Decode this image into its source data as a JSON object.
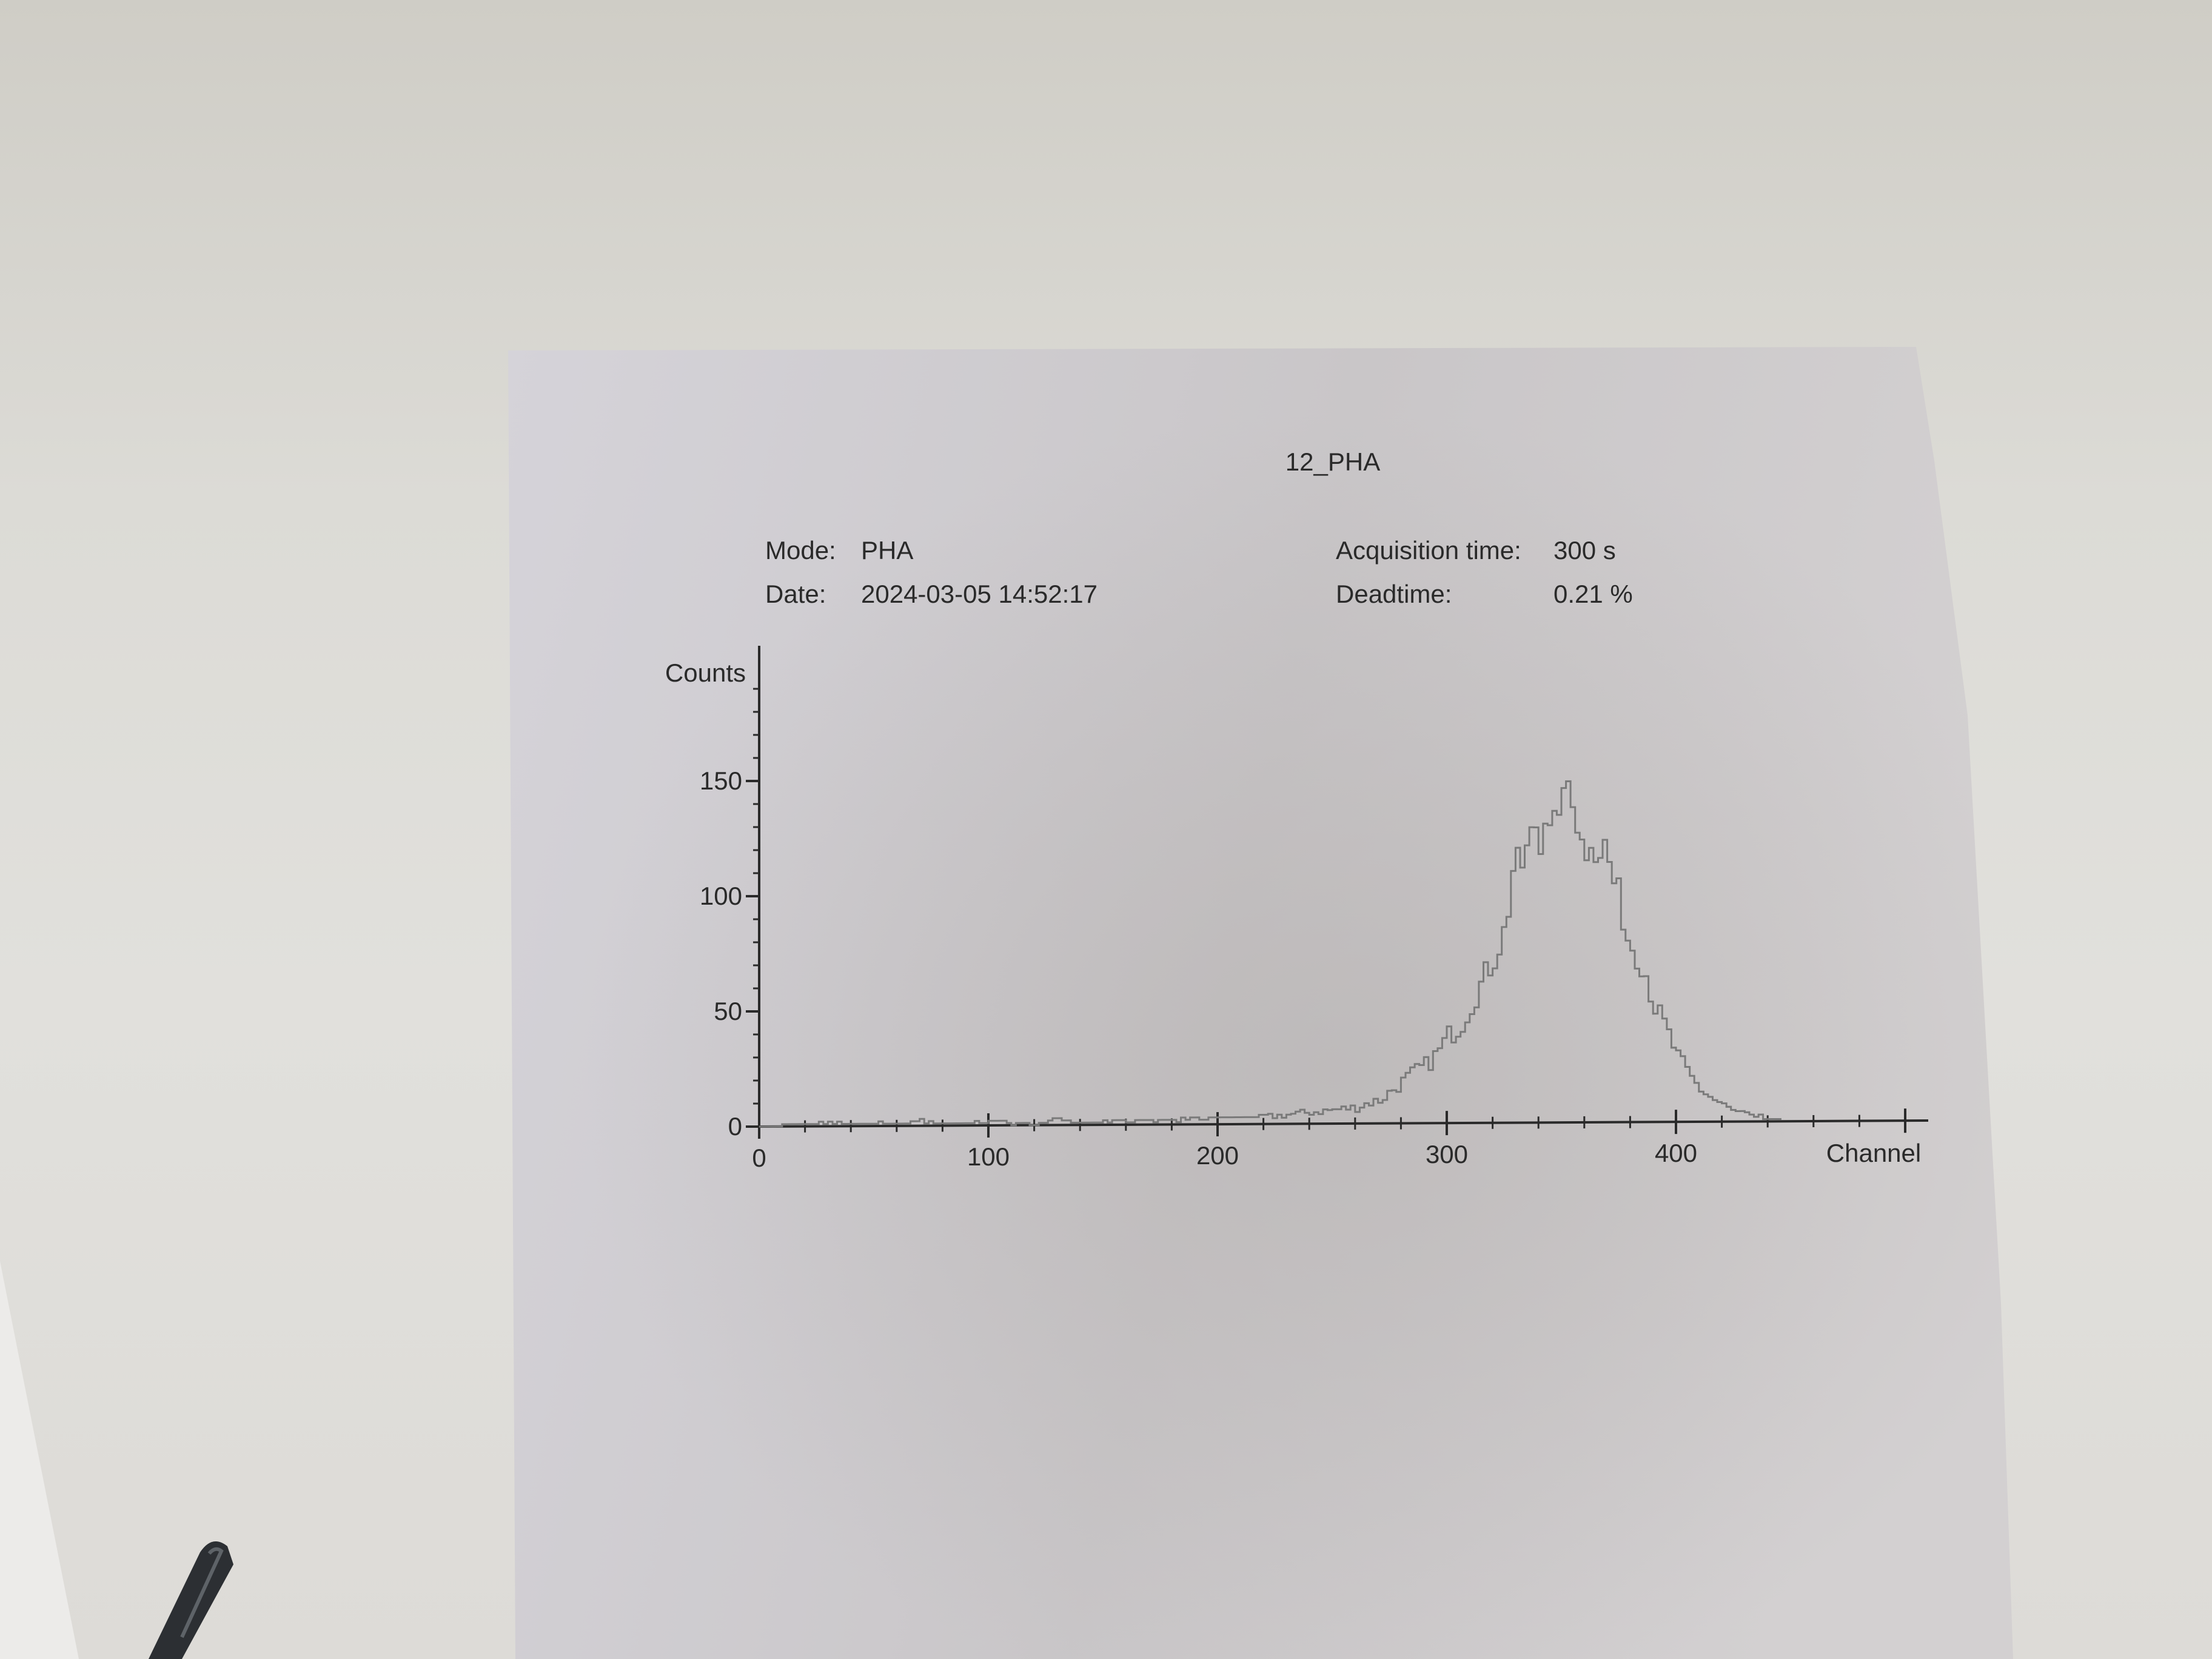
{
  "document": {
    "title": "12_PHA",
    "mode_label": "Mode:",
    "mode_value": "PHA",
    "date_label": "Date:",
    "date_value": "2024-03-05 14:52:17",
    "acq_label": "Acquisition time:",
    "acq_value": "300 s",
    "dead_label": "Deadtime:",
    "dead_value": "0.21 %"
  },
  "chart_data": {
    "type": "histogram",
    "title": "12_PHA",
    "xlabel": "Channel",
    "ylabel": "Counts",
    "xlim": [
      0,
      500
    ],
    "ylim": [
      0,
      190
    ],
    "x_ticks": [
      0,
      100,
      200,
      300,
      400
    ],
    "x_tick_labels": [
      "0",
      "100",
      "200",
      "300",
      "400"
    ],
    "y_ticks": [
      0,
      50,
      100,
      150
    ],
    "y_tick_labels": [
      "0",
      "50",
      "100",
      "150"
    ],
    "grid": false,
    "legend": "none",
    "line_color": "#7a7a7a",
    "series": [
      {
        "x": [
          0,
          10,
          20,
          30,
          40,
          50,
          60,
          70,
          80,
          90,
          100,
          110,
          120,
          130,
          140,
          150,
          160,
          170,
          180,
          190,
          200,
          210,
          220,
          230,
          240,
          250,
          260,
          265,
          270,
          275,
          280,
          285,
          290,
          295,
          300,
          305,
          310,
          315,
          320,
          325,
          328,
          332,
          335,
          338,
          340,
          342,
          345,
          348,
          350,
          352,
          355,
          358,
          360,
          362,
          365,
          368,
          370,
          372,
          375,
          378,
          380,
          385,
          390,
          395,
          400,
          405,
          410,
          415,
          420,
          425,
          430,
          435,
          440,
          450,
          460,
          470,
          480,
          490,
          500
        ],
        "values": [
          0,
          0,
          1,
          1,
          1,
          1,
          1,
          2,
          1,
          1,
          2,
          1,
          1,
          2,
          1,
          2,
          2,
          2,
          2,
          2,
          3,
          3,
          3,
          4,
          5,
          6,
          7,
          9,
          10,
          14,
          18,
          22,
          25,
          30,
          38,
          42,
          52,
          62,
          72,
          85,
          110,
          112,
          120,
          130,
          118,
          138,
          132,
          125,
          152,
          140,
          135,
          128,
          112,
          125,
          118,
          120,
          112,
          104,
          95,
          80,
          77,
          68,
          50,
          40,
          28,
          20,
          14,
          10,
          7,
          4,
          3,
          2,
          1,
          1,
          0,
          0,
          0,
          0,
          0
        ]
      }
    ]
  }
}
